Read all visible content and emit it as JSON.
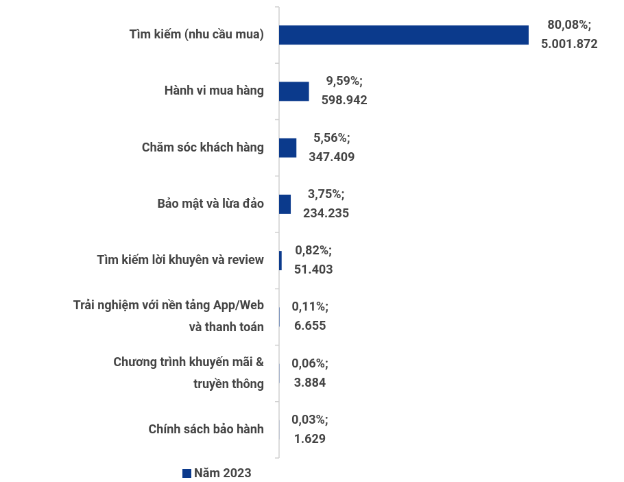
{
  "chart_data": {
    "type": "barh",
    "categories": [
      "Tìm kiếm (nhu cầu mua)",
      "Hành vi mua hàng",
      "Chăm sóc khách hàng",
      "Bảo mật và lừa đảo",
      "Tìm kiếm lời khuyên và review",
      "Trải nghiệm với nền tảng App/Web\nvà thanh toán",
      "Chương trình khuyến mãi &\ntruyền thông",
      "Chính sách bảo hành"
    ],
    "series": [
      {
        "name": "Năm 2023",
        "color": "#0b3a8c",
        "values": [
          80.08,
          9.59,
          5.56,
          3.75,
          0.82,
          0.11,
          0.06,
          0.03
        ],
        "value_labels": [
          "80,08%;",
          "9,59%;",
          "5,56%;",
          "3,75%;",
          "0,82%;",
          "0,11%;",
          "0,06%;",
          "0,03%;"
        ],
        "counts": [
          5001872,
          598942,
          347409,
          234235,
          51403,
          6655,
          3884,
          1629
        ],
        "count_labels": [
          "5.001.872",
          "598.942",
          "347.409",
          "234.235",
          "51.403",
          "6.655",
          "3.884",
          "1.629"
        ]
      }
    ]
  }
}
